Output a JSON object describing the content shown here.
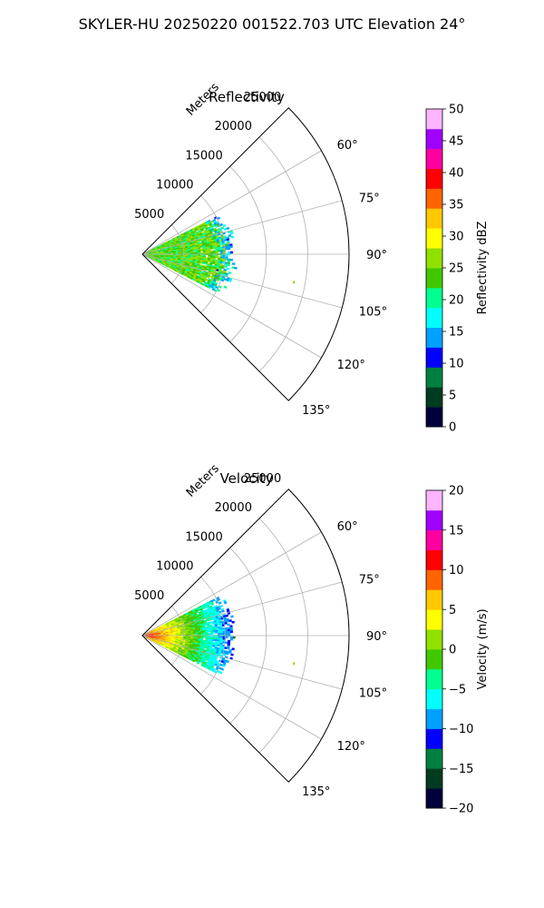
{
  "figure": {
    "suptitle": "SKYLER-HU  20250220  001522.703 UTC Elevation 24°"
  },
  "chart_data": [
    {
      "type": "heatmap",
      "projection": "polar-sector",
      "title": "Reflectivity",
      "radial_axis_label": "Meters",
      "radial_ticks": [
        5000,
        10000,
        15000,
        20000,
        25000
      ],
      "radial_tick_labels": [
        "5000",
        "10000",
        "15000",
        "20000",
        "25000"
      ],
      "r_max": 25000,
      "theta_range_deg": [
        45,
        135
      ],
      "theta_ticks": [
        60,
        75,
        90,
        105,
        120,
        135
      ],
      "theta_tick_labels": [
        "60°",
        "75°",
        "90°",
        "105°",
        "120°",
        "135°"
      ],
      "grid": true,
      "colorbar": {
        "label": "Reflectivity dBZ",
        "range": [
          0,
          50
        ],
        "ticks": [
          0,
          5,
          10,
          15,
          20,
          25,
          30,
          35,
          40,
          45,
          50
        ],
        "tick_labels": [
          "0",
          "5",
          "10",
          "15",
          "20",
          "25",
          "30",
          "35",
          "40",
          "45",
          "50"
        ],
        "colors": [
          "#00003c",
          "#003c20",
          "#008040",
          "#0000ff",
          "#00a0ff",
          "#00ffff",
          "#00ff90",
          "#40c800",
          "#90e000",
          "#ffff00",
          "#ffc800",
          "#ff6400",
          "#ff0000",
          "#ff00a0",
          "#a000ff",
          "#ffb4ff"
        ]
      },
      "echo": {
        "azimuth_range_deg": [
          63,
          117
        ],
        "range_m": [
          0,
          11500
        ],
        "typical_value": 24,
        "spread": 4
      }
    },
    {
      "type": "heatmap",
      "projection": "polar-sector",
      "title": "Velocity",
      "radial_axis_label": "Meters",
      "radial_ticks": [
        5000,
        10000,
        15000,
        20000,
        25000
      ],
      "radial_tick_labels": [
        "5000",
        "10000",
        "15000",
        "20000",
        "25000"
      ],
      "r_max": 25000,
      "theta_range_deg": [
        45,
        135
      ],
      "theta_ticks": [
        60,
        75,
        90,
        105,
        120,
        135
      ],
      "theta_tick_labels": [
        "60°",
        "75°",
        "90°",
        "105°",
        "120°",
        "135°"
      ],
      "grid": true,
      "colorbar": {
        "label": "Velocity (m/s)",
        "range": [
          -20,
          20
        ],
        "ticks": [
          -20,
          -15,
          -10,
          -5,
          0,
          5,
          10,
          15,
          20
        ],
        "tick_labels": [
          "−20",
          "−15",
          "−10",
          "−5",
          "0",
          "5",
          "10",
          "15",
          "20"
        ],
        "colors": [
          "#00003c",
          "#003c20",
          "#008040",
          "#0000ff",
          "#00a0ff",
          "#00ffff",
          "#00ff90",
          "#40c800",
          "#90e000",
          "#ffff00",
          "#ffc800",
          "#ff6400",
          "#ff0000",
          "#ff00a0",
          "#a000ff",
          "#ffb4ff"
        ]
      },
      "echo": {
        "azimuth_range_deg": [
          63,
          117
        ],
        "range_m": [
          0,
          11500
        ],
        "near_range_value": 12,
        "far_range_value": -5,
        "spread": 2
      }
    }
  ]
}
